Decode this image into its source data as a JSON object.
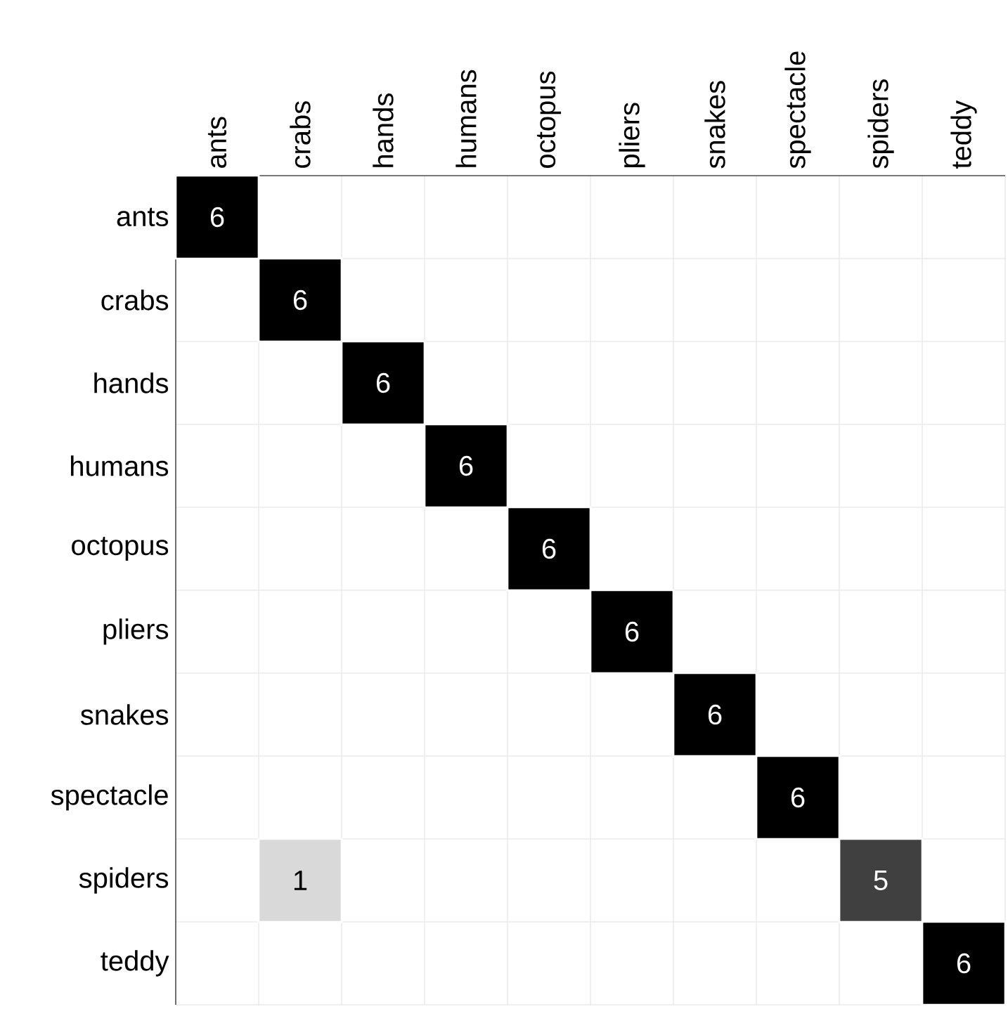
{
  "chart_data": {
    "type": "heatmap",
    "categories": [
      "ants",
      "crabs",
      "hands",
      "humans",
      "octopus",
      "pliers",
      "snakes",
      "spectacle",
      "spiders",
      "teddy"
    ],
    "y_categories": [
      "ants",
      "crabs",
      "hands",
      "humans",
      "octopus",
      "pliers",
      "snakes",
      "spectacle",
      "spiders",
      "teddy"
    ],
    "cells": [
      [
        6,
        null,
        null,
        null,
        null,
        null,
        null,
        null,
        null,
        null
      ],
      [
        null,
        6,
        null,
        null,
        null,
        null,
        null,
        null,
        null,
        null
      ],
      [
        null,
        null,
        6,
        null,
        null,
        null,
        null,
        null,
        null,
        null
      ],
      [
        null,
        null,
        null,
        6,
        null,
        null,
        null,
        null,
        null,
        null
      ],
      [
        null,
        null,
        null,
        null,
        6,
        null,
        null,
        null,
        null,
        null
      ],
      [
        null,
        null,
        null,
        null,
        null,
        6,
        null,
        null,
        null,
        null
      ],
      [
        null,
        null,
        null,
        null,
        null,
        null,
        6,
        null,
        null,
        null
      ],
      [
        null,
        null,
        null,
        null,
        null,
        null,
        null,
        6,
        null,
        null
      ],
      [
        null,
        1,
        null,
        null,
        null,
        null,
        null,
        null,
        5,
        null
      ],
      [
        null,
        null,
        null,
        null,
        null,
        null,
        null,
        null,
        null,
        6
      ]
    ],
    "cell_labels": [
      [
        "6",
        null,
        null,
        null,
        null,
        null,
        null,
        null,
        null,
        null
      ],
      [
        null,
        "6",
        null,
        null,
        null,
        null,
        null,
        null,
        null,
        null
      ],
      [
        null,
        null,
        "6",
        null,
        null,
        null,
        null,
        null,
        null,
        null
      ],
      [
        null,
        null,
        null,
        "6",
        null,
        null,
        null,
        null,
        null,
        null
      ],
      [
        null,
        null,
        null,
        null,
        "6",
        null,
        null,
        null,
        null,
        null
      ],
      [
        null,
        null,
        null,
        null,
        null,
        "6",
        null,
        null,
        null,
        null
      ],
      [
        null,
        null,
        null,
        null,
        null,
        null,
        "6",
        null,
        null,
        null
      ],
      [
        null,
        null,
        null,
        null,
        null,
        null,
        null,
        "6",
        null,
        null
      ],
      [
        null,
        "1",
        null,
        null,
        null,
        null,
        null,
        null,
        "5",
        null
      ],
      [
        null,
        null,
        null,
        null,
        null,
        null,
        null,
        null,
        null,
        "6"
      ]
    ],
    "grid": true
  }
}
